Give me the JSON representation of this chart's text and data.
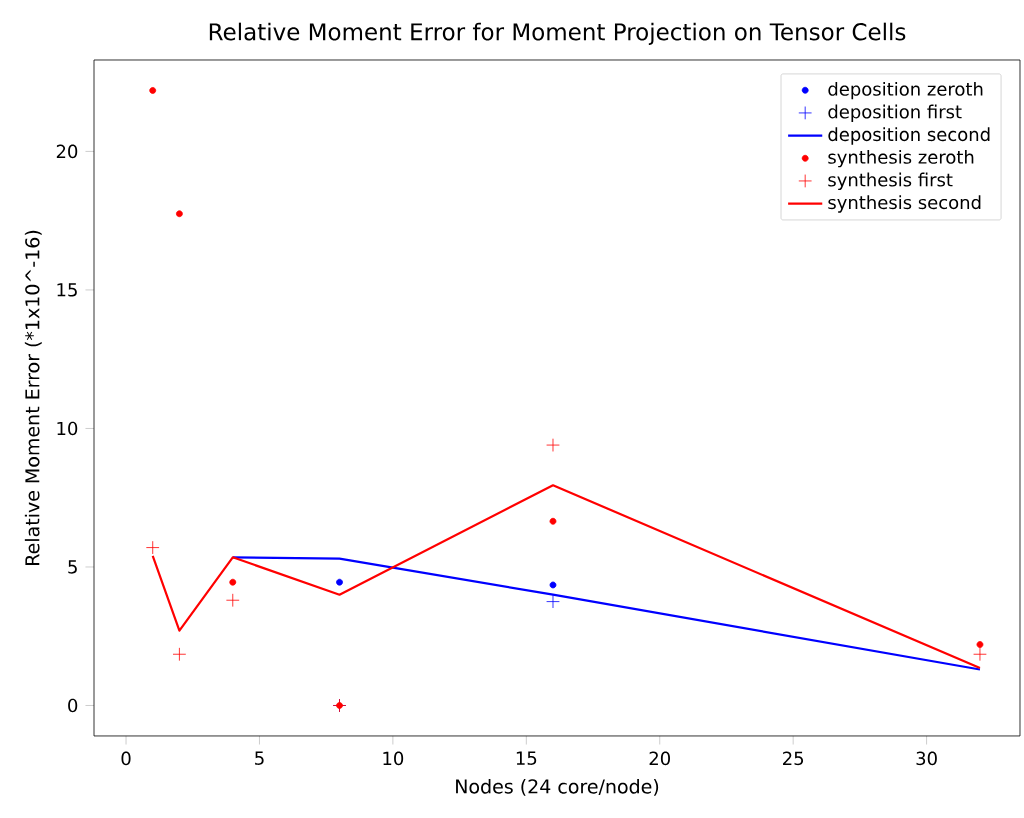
{
  "chart_data": {
    "type": "line",
    "title": "Relative Moment Error for Moment Projection on Tensor Cells",
    "xlabel": "Nodes (24 core/node)",
    "ylabel": "Relative Moment Error (*1x10^-16)",
    "x": [
      1,
      2,
      4,
      8,
      16,
      32
    ],
    "series": [
      {
        "name": "deposition zeroth",
        "type": "scatter",
        "marker": "circle",
        "color": "#0000ff",
        "values": [
          null,
          null,
          null,
          4.45,
          4.35,
          null
        ]
      },
      {
        "name": "deposition first",
        "type": "scatter",
        "marker": "cross",
        "color": "#0000ff",
        "values": [
          null,
          null,
          null,
          0,
          3.75,
          null
        ]
      },
      {
        "name": "deposition second",
        "marker": "none",
        "color": "#0000ff",
        "values": [
          null,
          null,
          5.35,
          5.3,
          4.0,
          1.3
        ]
      },
      {
        "name": "synthesis zeroth",
        "type": "scatter",
        "marker": "circle",
        "color": "#ff0000",
        "values": [
          22.2,
          17.75,
          4.45,
          0,
          6.65,
          2.2
        ]
      },
      {
        "name": "synthesis first",
        "type": "scatter",
        "marker": "cross",
        "color": "#ff0000",
        "values": [
          5.7,
          1.85,
          3.8,
          0,
          9.4,
          1.85
        ]
      },
      {
        "name": "synthesis second",
        "marker": "none",
        "color": "#ff0000",
        "values": [
          5.4,
          2.7,
          5.35,
          4.0,
          7.95,
          1.35
        ]
      }
    ],
    "xlim": [
      -1.2,
      33.5
    ],
    "ylim": [
      -1.1,
      23.3
    ],
    "xticks": [
      0,
      5,
      10,
      15,
      20,
      25,
      30
    ],
    "yticks": [
      0,
      5,
      10,
      15,
      20
    ],
    "legend": "top right",
    "grid": false
  }
}
